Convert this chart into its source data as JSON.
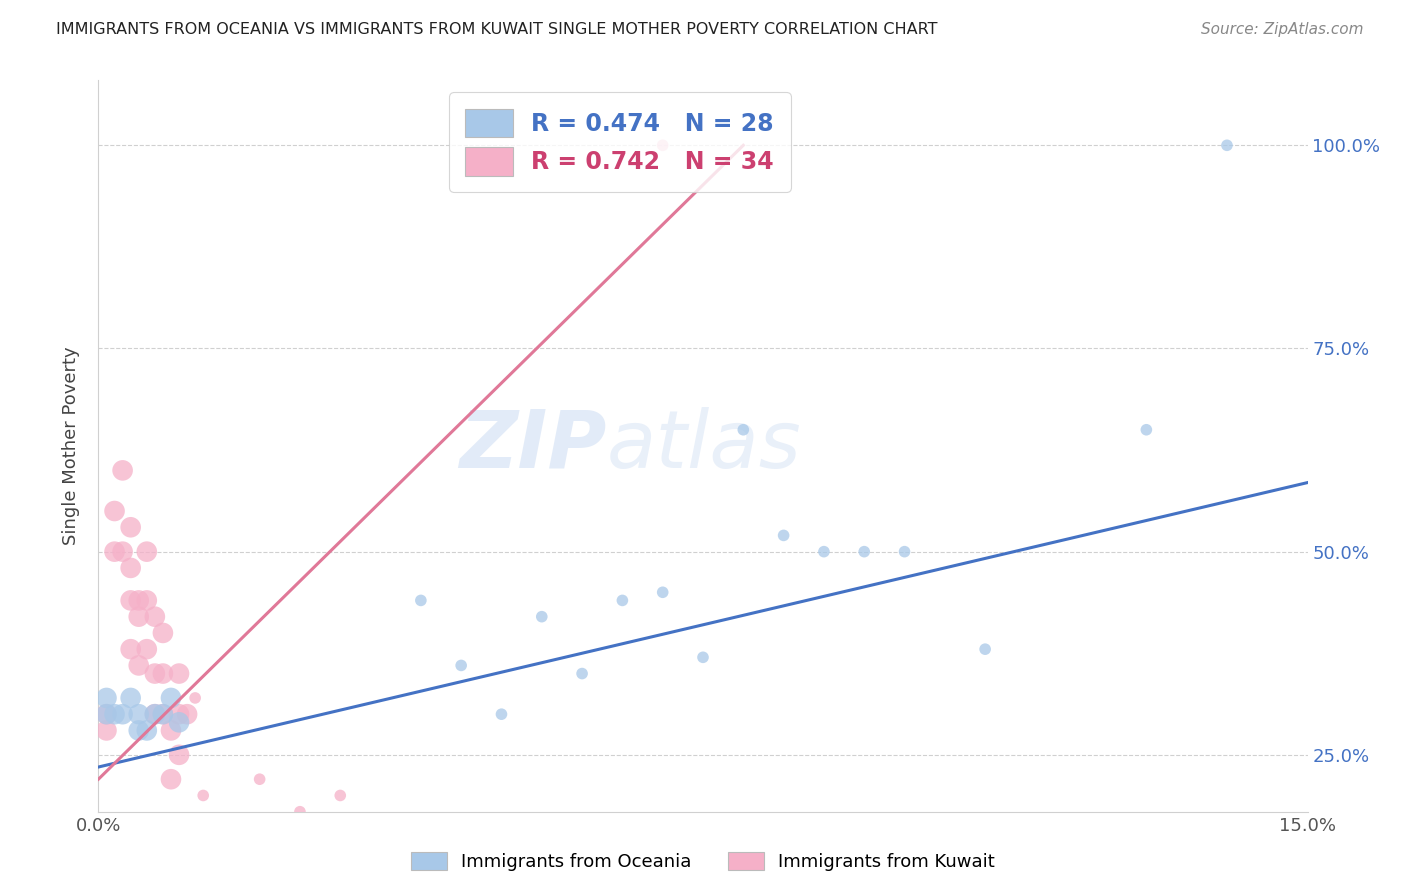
{
  "title": "IMMIGRANTS FROM OCEANIA VS IMMIGRANTS FROM KUWAIT SINGLE MOTHER POVERTY CORRELATION CHART",
  "source": "Source: ZipAtlas.com",
  "ylabel": "Single Mother Poverty",
  "xlim": [
    0.0,
    0.15
  ],
  "ylim": [
    0.18,
    1.08
  ],
  "yticks": [
    0.25,
    0.5,
    0.75,
    1.0
  ],
  "ytick_labels": [
    "25.0%",
    "50.0%",
    "75.0%",
    "100.0%"
  ],
  "xticks": [
    0.0,
    0.03,
    0.06,
    0.09,
    0.12,
    0.15
  ],
  "xtick_labels": [
    "0.0%",
    "",
    "",
    "",
    "",
    "15.0%"
  ],
  "series1_label": "Immigrants from Oceania",
  "series2_label": "Immigrants from Kuwait",
  "series1_color": "#a8c8e8",
  "series2_color": "#f5b0c8",
  "series1_R": 0.474,
  "series1_N": 28,
  "series2_R": 0.742,
  "series2_N": 34,
  "trend1_color": "#4472c4",
  "trend2_color": "#e07898",
  "watermark": "ZIPatlas",
  "oceania_x": [
    0.001,
    0.001,
    0.002,
    0.003,
    0.004,
    0.005,
    0.005,
    0.006,
    0.007,
    0.008,
    0.009,
    0.01,
    0.04,
    0.045,
    0.05,
    0.055,
    0.06,
    0.065,
    0.07,
    0.075,
    0.08,
    0.085,
    0.09,
    0.095,
    0.1,
    0.11,
    0.13,
    0.14
  ],
  "oceania_y": [
    0.32,
    0.3,
    0.3,
    0.3,
    0.32,
    0.3,
    0.28,
    0.28,
    0.3,
    0.3,
    0.32,
    0.29,
    0.44,
    0.36,
    0.3,
    0.42,
    0.35,
    0.44,
    0.45,
    0.37,
    0.65,
    0.52,
    0.5,
    0.5,
    0.5,
    0.38,
    0.65,
    1.0
  ],
  "kuwait_x": [
    0.001,
    0.001,
    0.002,
    0.002,
    0.003,
    0.003,
    0.004,
    0.004,
    0.004,
    0.004,
    0.005,
    0.005,
    0.005,
    0.006,
    0.006,
    0.006,
    0.007,
    0.007,
    0.007,
    0.008,
    0.008,
    0.008,
    0.009,
    0.009,
    0.01,
    0.01,
    0.01,
    0.011,
    0.012,
    0.013,
    0.02,
    0.025,
    0.03,
    0.07
  ],
  "kuwait_y": [
    0.3,
    0.28,
    0.55,
    0.5,
    0.6,
    0.5,
    0.53,
    0.48,
    0.44,
    0.38,
    0.44,
    0.42,
    0.36,
    0.5,
    0.44,
    0.38,
    0.42,
    0.35,
    0.3,
    0.4,
    0.35,
    0.3,
    0.28,
    0.22,
    0.35,
    0.3,
    0.25,
    0.3,
    0.32,
    0.2,
    0.22,
    0.18,
    0.2,
    1.0
  ],
  "trend1_x": [
    0.0,
    0.15
  ],
  "trend1_y": [
    0.235,
    0.585
  ],
  "trend2_x": [
    0.0,
    0.08
  ],
  "trend2_y": [
    0.22,
    1.0
  ]
}
